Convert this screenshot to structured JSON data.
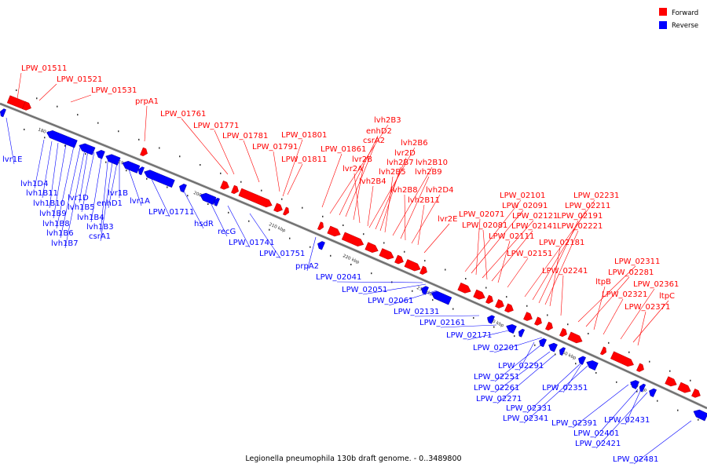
{
  "legend": [
    {
      "label": "Forward",
      "color": "#ff0000"
    },
    {
      "label": "Reverse",
      "color": "#0000ff"
    }
  ],
  "colors": {
    "forward": "#ff0000",
    "reverse": "#0000ff",
    "backbone": "#888888"
  },
  "caption": "Legionella pneumophila 130b draft genome. - 0..3489800",
  "ticks": [
    "180 kbp",
    "190 kbp",
    "200 kbp",
    "210 kbp",
    "220 kbp",
    "230 kbp",
    "240 kbp",
    "250 kbp",
    "260 kbp"
  ],
  "forward_labels": [
    "LPW_01511",
    "LPW_01521",
    "LPW_01531",
    "prpA1",
    "LPW_01761",
    "LPW_01771",
    "LPW_01781",
    "LPW_01791",
    "LPW_01801",
    "LPW_01811",
    "LPW_01861",
    "lvh2B3",
    "enhD2",
    "csrA2",
    "lvr2B",
    "lvr2A",
    "lvh2B4",
    "lvh2B6",
    "lvr2D",
    "lvh2B7",
    "lvh2B5",
    "lvh2B10",
    "lvh2B9",
    "lvh2B8",
    "lvh2D4",
    "lvh2B11",
    "lvr2E",
    "LPW_02101",
    "LPW_02091",
    "LPW_02071",
    "LPW_02121",
    "LPW_02081",
    "LPW_02141",
    "LPW_02111",
    "LPW_02151",
    "LPW_02231",
    "LPW_02211",
    "LPW_02191",
    "LPW_02221",
    "LPW_02181",
    "LPW_02241",
    "LPW_02311",
    "LPW_02281",
    "ltpB",
    "LPW_02321",
    "LPW_02361",
    "ltpC",
    "LPW_02371"
  ],
  "reverse_labels": [
    "lvr1E",
    "lvh1D4",
    "lvh1B11",
    "lvh1B10",
    "lvh1B9",
    "lvh1B8",
    "lvh1B6",
    "lvh1B7",
    "lvr1D",
    "lvh1B5",
    "lvh1B4",
    "lvh1B3",
    "csrA1",
    "enhD1",
    "lvr1B",
    "lvr1A",
    "LPW_01711",
    "hsdR",
    "recG",
    "LPW_01741",
    "LPW_01751",
    "prpA2",
    "LPW_02041",
    "LPW_02051",
    "LPW_02061",
    "LPW_02131",
    "LPW_02161",
    "LPW_02171",
    "LPW_02201",
    "LPW_02291",
    "LPW_02251",
    "LPW_02261",
    "LPW_02271",
    "LPW_02351",
    "LPW_02331",
    "LPW_02341",
    "LPW_02391",
    "LPW_02401",
    "LPW_02431",
    "LPW_02421",
    "LPW_02481"
  ]
}
